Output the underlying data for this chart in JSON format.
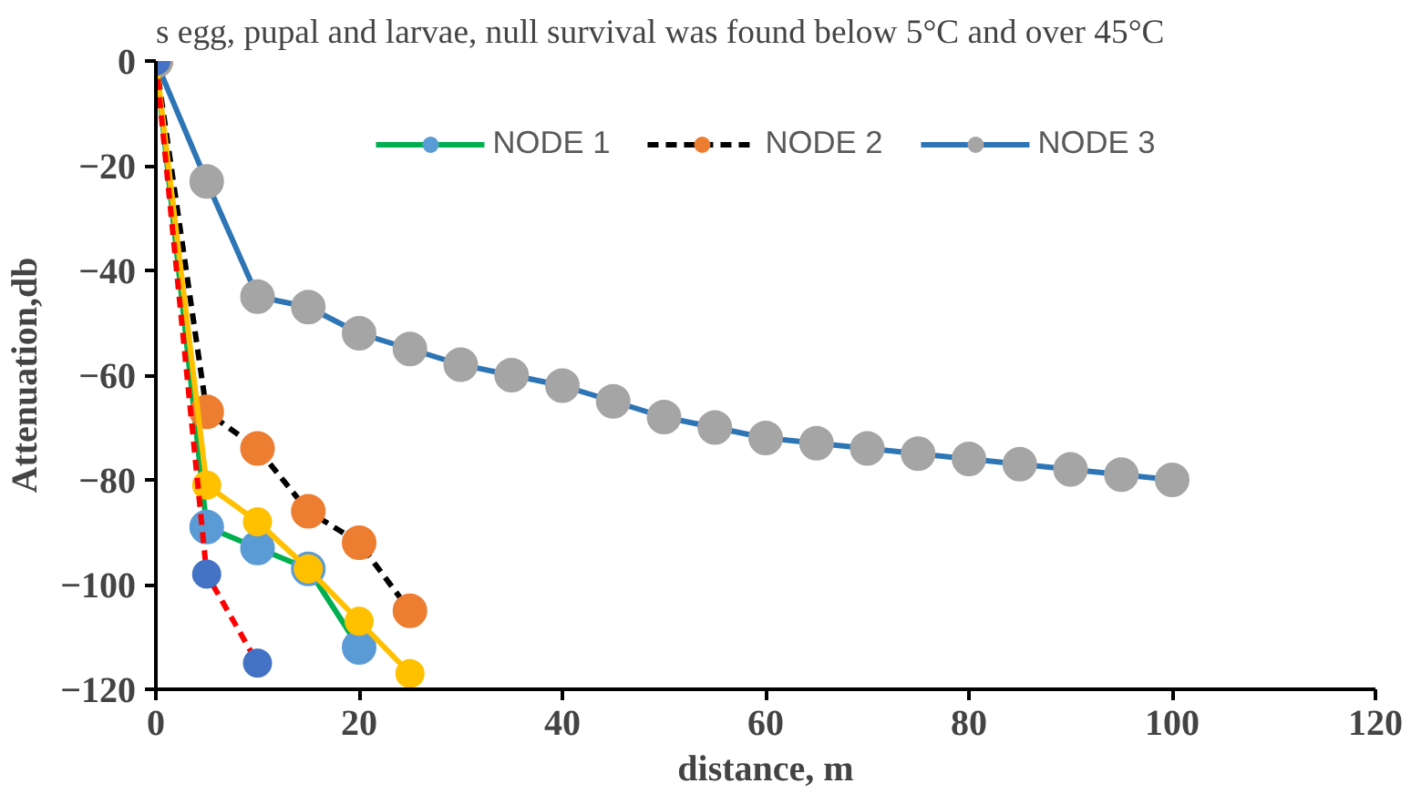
{
  "chart_data": {
    "type": "line",
    "xlabel": "distance, m",
    "ylabel": "Attenuation,db",
    "annotations": [
      "s egg, pupal and larvae, null survival was found below 5°C and over 45°C"
    ],
    "xlim": [
      0,
      120
    ],
    "xticks": [
      0,
      20,
      40,
      60,
      80,
      100,
      120
    ],
    "ylim": [
      -120,
      0
    ],
    "yticks": [
      -120,
      -100,
      -80,
      -60,
      -40,
      -20,
      0
    ],
    "grid": false,
    "legend": "top",
    "marker": "circle",
    "series": [
      {
        "name": "NODE 1",
        "color": "#00b050",
        "colors": [
          "#5b9bd5",
          "#5b9bd5",
          "#5b9bd5",
          "#5b9bd5",
          "#5b9bd5"
        ],
        "line_style": "solid",
        "x": [
          0,
          5,
          10,
          15,
          20
        ],
        "values": [
          0,
          -89,
          -93,
          -97,
          -112
        ]
      },
      {
        "name": "NODE 2",
        "color": "#000000",
        "colors": [
          "#ed7d31",
          "#ed7d31",
          "#ed7d31",
          "#ed7d31",
          "#ed7d31",
          "#ed7d31"
        ],
        "line_style": "dashed",
        "x": [
          0,
          5,
          10,
          15,
          20,
          25
        ],
        "values": [
          0,
          -67,
          -74,
          -86,
          -92,
          -105
        ]
      },
      {
        "name": "NODE 3",
        "color": "#2e75b6",
        "colors": [
          "#a5a5a5",
          "#a5a5a5",
          "#a5a5a5",
          "#a5a5a5",
          "#a5a5a5",
          "#a5a5a5",
          "#a5a5a5",
          "#a5a5a5",
          "#a5a5a5",
          "#a5a5a5",
          "#a5a5a5",
          "#a5a5a5",
          "#a5a5a5",
          "#a5a5a5",
          "#a5a5a5",
          "#a5a5a5",
          "#a5a5a5",
          "#a5a5a5",
          "#a5a5a5",
          "#a5a5a5",
          "#a5a5a5"
        ],
        "line_style": "solid",
        "x": [
          0,
          5,
          10,
          15,
          20,
          25,
          30,
          35,
          40,
          45,
          50,
          55,
          60,
          65,
          70,
          75,
          80,
          85,
          90,
          95,
          100
        ],
        "values": [
          0,
          -23,
          -45,
          -47,
          -52,
          -55,
          -58,
          -60,
          -62,
          -65,
          -68,
          -70,
          -72,
          -73,
          -74,
          -75,
          -76,
          -77,
          -78,
          -79,
          -80
        ]
      },
      {
        "color": "#ffc000",
        "line_style": "solid",
        "x": [
          0,
          5,
          10,
          15,
          20,
          25
        ],
        "values": [
          0,
          -81,
          -88,
          -97,
          -107,
          -117
        ]
      },
      {
        "color": "#ff0000",
        "colors": [
          "#4472c4",
          "#4472c4",
          "#4472c4"
        ],
        "line_style": "dashed",
        "x": [
          0,
          5,
          10
        ],
        "values": [
          0,
          -98,
          -115
        ]
      }
    ]
  }
}
